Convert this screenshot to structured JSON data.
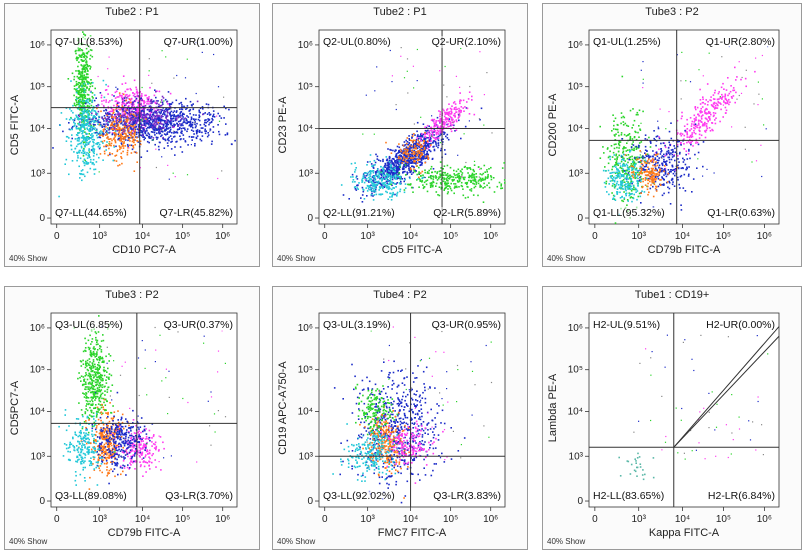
{
  "chart_data": [
    {
      "type": "scatter",
      "title": "Tube2 : P1",
      "xlabel": "CD10 PC7-A",
      "ylabel": "CD5 FITC-A",
      "show_text": "40% Show",
      "x_ticks": [
        "0",
        "10³",
        "10⁴",
        "10⁵",
        "10⁶"
      ],
      "y_ticks": [
        "0",
        "10³",
        "10⁴",
        "10⁵",
        "10⁶"
      ],
      "quadrants": {
        "UL": "Q7-UL(8.53%)",
        "UR": "Q7-UR(1.00%)",
        "LL": "Q7-LL(44.65%)",
        "LR": "Q7-LR(45.82%)"
      },
      "gate": {
        "x": 2.6,
        "y": 3.4
      },
      "xlim": [
        -0.5,
        6
      ],
      "ylim": [
        -0.5,
        6
      ],
      "populations": [
        {
          "color": "#2bd42b",
          "cx": 0.6,
          "cy": 4.1,
          "sx": 0.15,
          "sy": 0.8,
          "n": 420
        },
        {
          "color": "#ff3cf0",
          "cx": 2.3,
          "cy": 3.5,
          "sx": 0.5,
          "sy": 0.35,
          "n": 300
        },
        {
          "color": "#1c2cc8",
          "cx": 3.1,
          "cy": 2.9,
          "sx": 1.2,
          "sy": 0.35,
          "n": 950
        },
        {
          "color": "#ff7a1a",
          "cx": 1.9,
          "cy": 2.6,
          "sx": 0.35,
          "sy": 0.45,
          "n": 260
        },
        {
          "color": "#22c8d8",
          "cx": 0.7,
          "cy": 2.6,
          "sx": 0.3,
          "sy": 0.7,
          "n": 380
        },
        {
          "color": "#7a2cc8",
          "cx": 2.6,
          "cy": 3.1,
          "sx": 0.8,
          "sy": 0.3,
          "n": 220
        }
      ]
    },
    {
      "type": "scatter",
      "title": "Tube2 : P1",
      "xlabel": "CD5 FITC-A",
      "ylabel": "CD23 PE-A",
      "show_text": "40% Show",
      "x_ticks": [
        "0",
        "10³",
        "10⁴",
        "10⁵",
        "10⁶"
      ],
      "y_ticks": [
        "0",
        "10³",
        "10⁴",
        "10⁵",
        "10⁶"
      ],
      "quadrants": {
        "UL": "Q2-UL(0.80%)",
        "UR": "Q2-UR(2.10%)",
        "LL": "Q2-LL(91.21%)",
        "LR": "Q2-LR(5.89%)"
      },
      "gate": {
        "x": 3.8,
        "y": 2.7
      },
      "xlim": [
        -0.5,
        6
      ],
      "ylim": [
        -0.5,
        6
      ],
      "populations": [
        {
          "color": "#1c2cc8",
          "cx": 2.5,
          "cy": 1.7,
          "sx": 0.7,
          "sy": 0.5,
          "corr": 0.8,
          "n": 800
        },
        {
          "color": "#ff3cf0",
          "cx": 3.9,
          "cy": 3.0,
          "sx": 0.4,
          "sy": 0.35,
          "corr": 0.8,
          "n": 220
        },
        {
          "color": "#2bd42b",
          "cx": 4.2,
          "cy": 1.0,
          "sx": 0.9,
          "sy": 0.25,
          "n": 350
        },
        {
          "color": "#22c8d8",
          "cx": 1.6,
          "cy": 1.0,
          "sx": 0.5,
          "sy": 0.3,
          "n": 250
        },
        {
          "color": "#ff7a1a",
          "cx": 2.8,
          "cy": 1.9,
          "sx": 0.3,
          "sy": 0.3,
          "n": 120
        }
      ]
    },
    {
      "type": "scatter",
      "title": "Tube3 : P2",
      "xlabel": "CD79b FITC-A",
      "ylabel": "CD200 PE-A",
      "show_text": "40% Show",
      "x_ticks": [
        "0",
        "10³",
        "10⁴",
        "10⁵",
        "10⁶"
      ],
      "y_ticks": [
        "0",
        "10³",
        "10⁴",
        "10⁵",
        "10⁶"
      ],
      "quadrants": {
        "UL": "Q1-UL(1.25%)",
        "UR": "Q1-UR(2.80%)",
        "LL": "Q1-LL(95.32%)",
        "LR": "Q1-LR(0.63%)"
      },
      "gate": {
        "x": 2.5,
        "y": 2.3
      },
      "xlim": [
        -0.5,
        6
      ],
      "ylim": [
        -0.5,
        6
      ],
      "populations": [
        {
          "color": "#2bd42b",
          "cx": 0.8,
          "cy": 1.7,
          "sx": 0.35,
          "sy": 0.8,
          "n": 300
        },
        {
          "color": "#ff3cf0",
          "cx": 3.4,
          "cy": 3.1,
          "sx": 0.6,
          "sy": 0.6,
          "corr": 0.85,
          "n": 280
        },
        {
          "color": "#1c2cc8",
          "cx": 2.0,
          "cy": 1.5,
          "sx": 0.5,
          "sy": 0.5,
          "n": 300
        },
        {
          "color": "#ff7a1a",
          "cx": 1.5,
          "cy": 1.2,
          "sx": 0.3,
          "sy": 0.3,
          "n": 150
        },
        {
          "color": "#22c8d8",
          "cx": 0.7,
          "cy": 1.0,
          "sx": 0.3,
          "sy": 0.4,
          "n": 200
        }
      ]
    },
    {
      "type": "scatter",
      "title": "Tube3 : P2",
      "xlabel": "CD79b FITC-A",
      "ylabel": "CD5PC7-A",
      "show_text": "40% Show",
      "x_ticks": [
        "0",
        "10³",
        "10⁴",
        "10⁵",
        "10⁶"
      ],
      "y_ticks": [
        "0",
        "10³",
        "10⁴",
        "10⁵",
        "10⁶"
      ],
      "quadrants": {
        "UL": "Q3-UL(6.85%)",
        "UR": "Q3-UR(0.37%)",
        "LL": "Q3-LL(89.08%)",
        "LR": "Q3-LR(3.70%)"
      },
      "gate": {
        "x": 2.5,
        "y": 2.3
      },
      "xlim": [
        -0.5,
        6
      ],
      "ylim": [
        -0.5,
        6
      ],
      "populations": [
        {
          "color": "#2bd42b",
          "cx": 1.0,
          "cy": 3.8,
          "sx": 0.25,
          "sy": 0.8,
          "n": 420
        },
        {
          "color": "#ff7a1a",
          "cx": 1.4,
          "cy": 1.7,
          "sx": 0.3,
          "sy": 0.5,
          "n": 300
        },
        {
          "color": "#ff3cf0",
          "cx": 2.5,
          "cy": 1.5,
          "sx": 0.4,
          "sy": 0.35,
          "n": 200
        },
        {
          "color": "#1c2cc8",
          "cx": 1.9,
          "cy": 1.7,
          "sx": 0.45,
          "sy": 0.45,
          "n": 300
        },
        {
          "color": "#22c8d8",
          "cx": 0.6,
          "cy": 1.5,
          "sx": 0.3,
          "sy": 0.5,
          "n": 200
        }
      ]
    },
    {
      "type": "scatter",
      "title": "Tube4 : P2",
      "xlabel": "FMC7 FITC-A",
      "ylabel": "CD19 APC-A750-A",
      "show_text": "40% Show",
      "x_ticks": [
        "0",
        "10³",
        "10⁴",
        "10⁵",
        "10⁶"
      ],
      "y_ticks": [
        "0",
        "10³",
        "10⁴",
        "10⁵",
        "10⁶"
      ],
      "quadrants": {
        "UL": "Q3-UL(3.19%)",
        "UR": "Q3-UR(0.95%)",
        "LL": "Q3-LL(92.02%)",
        "LR": "Q3-LR(3.83%)"
      },
      "gate": {
        "x": 2.7,
        "y": 1.2
      },
      "xlim": [
        -0.5,
        6
      ],
      "ylim": [
        -0.5,
        6
      ],
      "populations": [
        {
          "color": "#1c2cc8",
          "cx": 2.2,
          "cy": 2.2,
          "sx": 0.7,
          "sy": 0.9,
          "n": 600
        },
        {
          "color": "#ff7a1a",
          "cx": 1.8,
          "cy": 1.7,
          "sx": 0.35,
          "sy": 0.45,
          "n": 250
        },
        {
          "color": "#2bd42b",
          "cx": 1.4,
          "cy": 2.8,
          "sx": 0.3,
          "sy": 0.35,
          "n": 150
        },
        {
          "color": "#ff3cf0",
          "cx": 2.6,
          "cy": 1.6,
          "sx": 0.4,
          "sy": 0.35,
          "n": 150
        },
        {
          "color": "#22c8d8",
          "cx": 1.3,
          "cy": 1.3,
          "sx": 0.4,
          "sy": 0.4,
          "n": 200
        }
      ]
    },
    {
      "type": "scatter",
      "title": "Tube1 : CD19+",
      "xlabel": "Kappa FITC-A",
      "ylabel": "Lambda PE-A",
      "show_text": "40% Show",
      "x_ticks": [
        "0",
        "10³",
        "10⁴",
        "10⁵",
        "10⁶"
      ],
      "y_ticks": [
        "0",
        "10³",
        "10⁴",
        "10⁵",
        "10⁶"
      ],
      "quadrants": {
        "UL": "H2-UL(9.51%)",
        "UR": "H2-UR(0.00%)",
        "LL": "H2-LL(83.65%)",
        "LR": "H2-LR(6.84%)"
      },
      "gate": {
        "x": 2.4,
        "y": 1.5
      },
      "xlim": [
        -0.5,
        6
      ],
      "ylim": [
        -0.5,
        6
      ],
      "populations": [
        {
          "color": "#5bb8a8",
          "cx": 1.1,
          "cy": 0.9,
          "sx": 0.25,
          "sy": 0.25,
          "n": 25
        }
      ]
    }
  ]
}
